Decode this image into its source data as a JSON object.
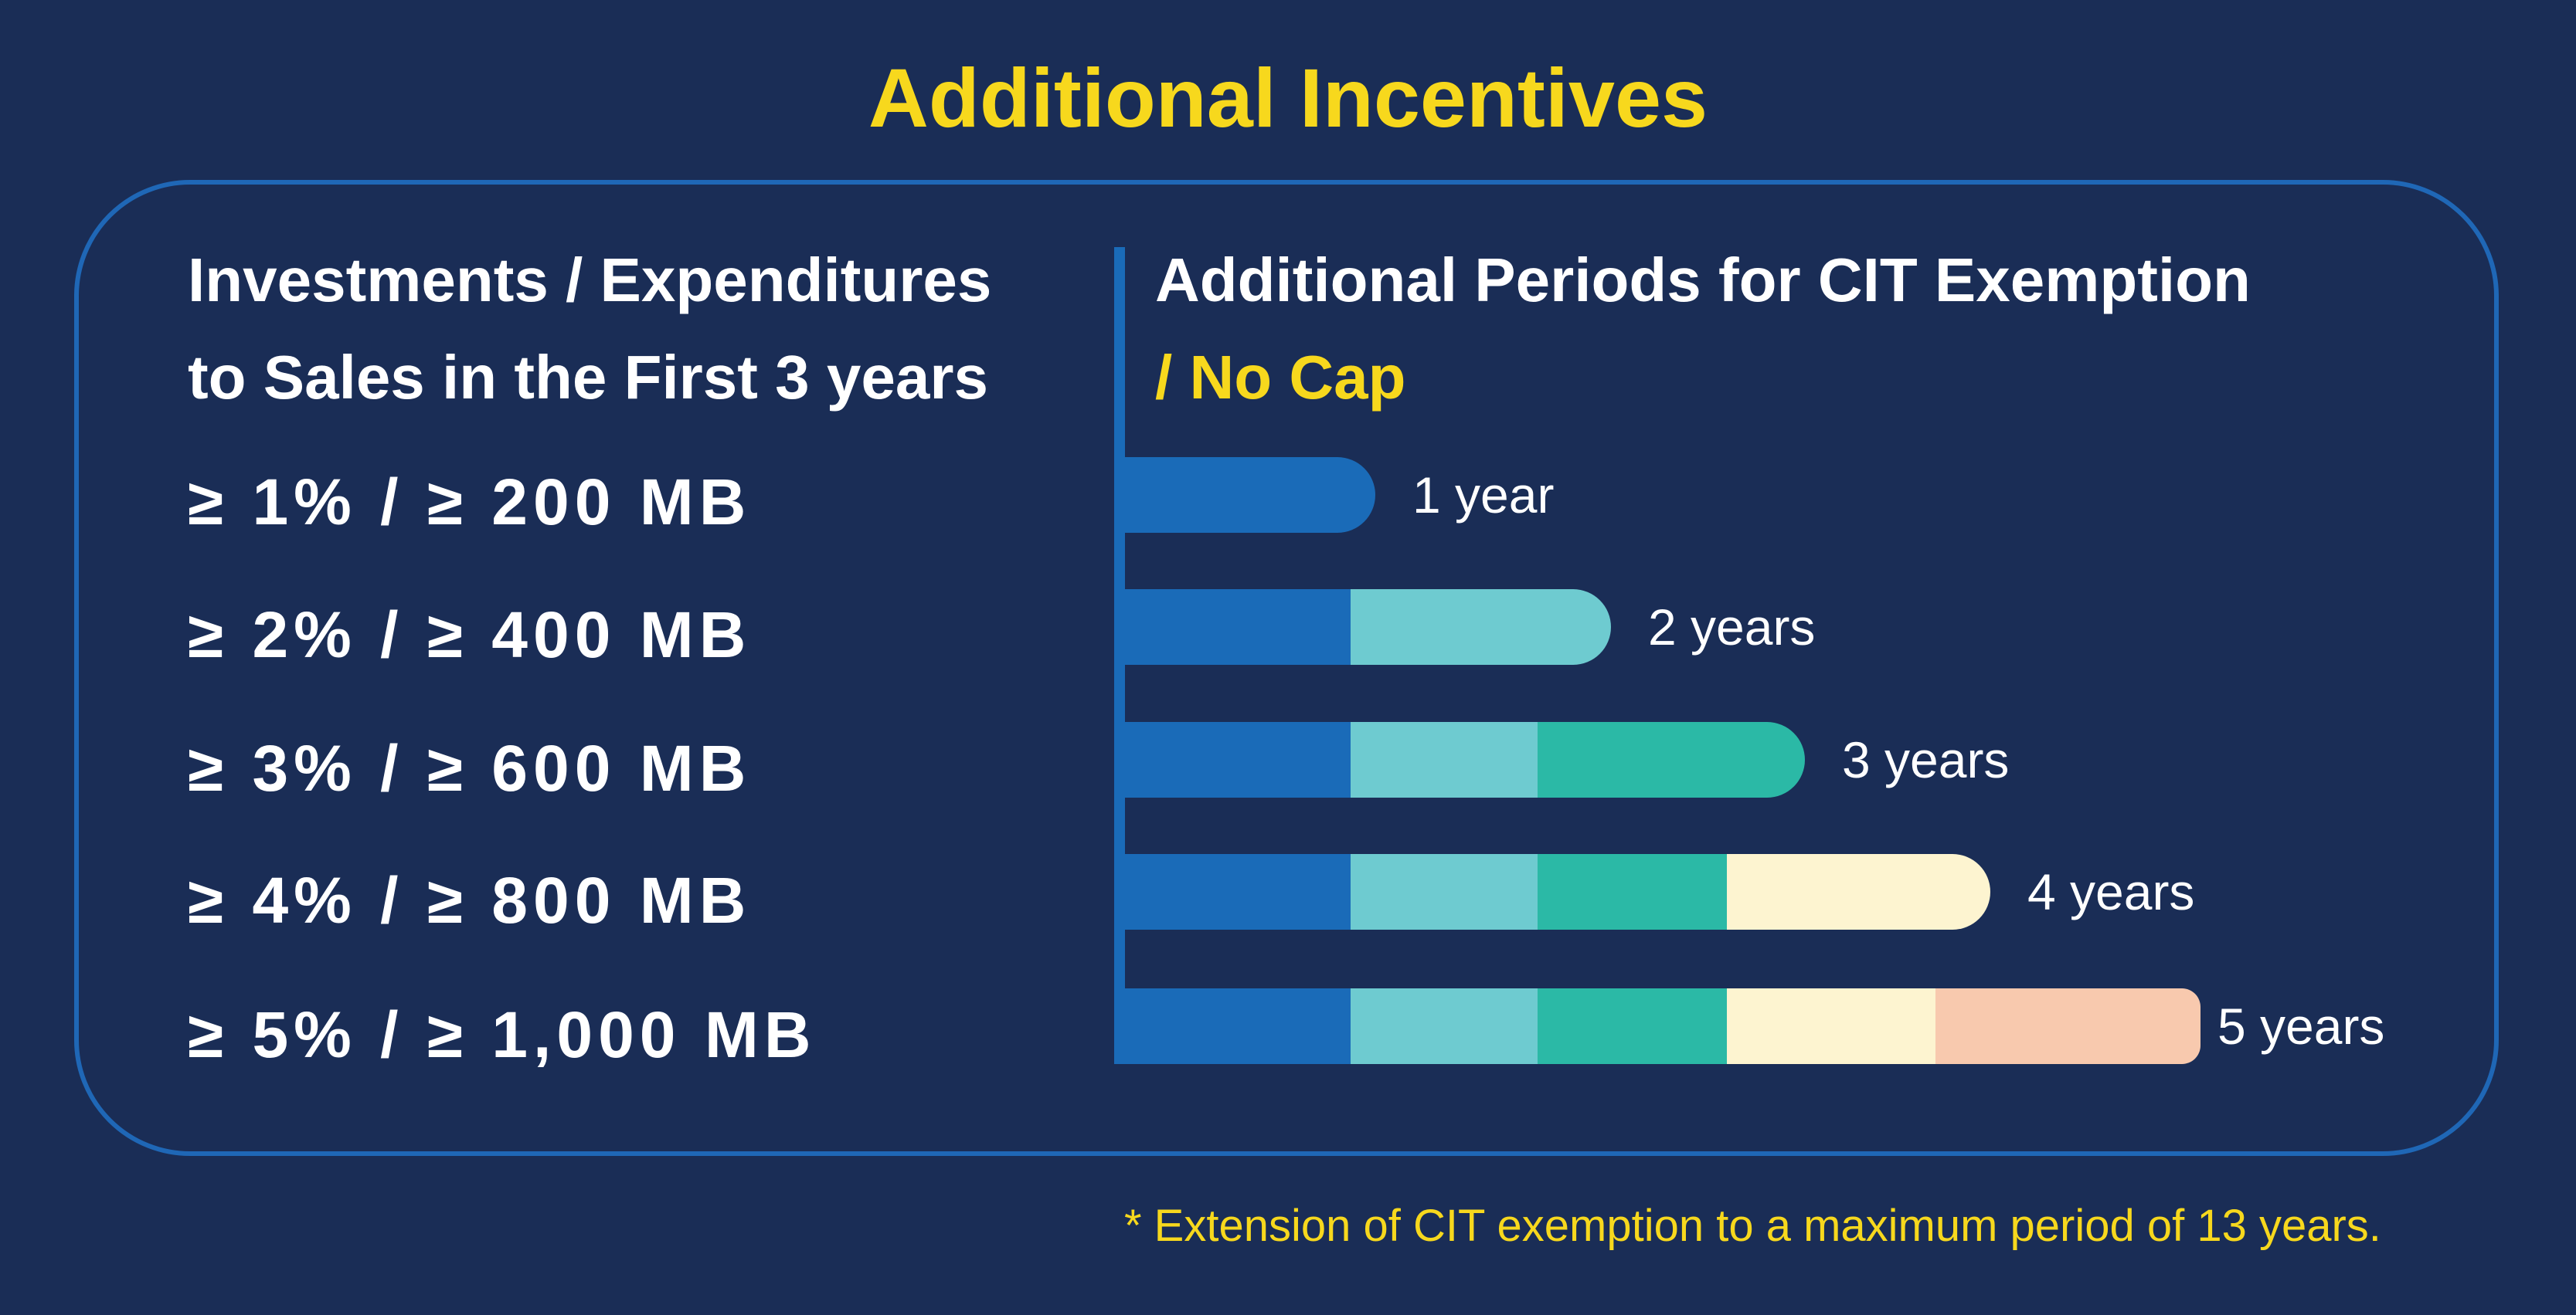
{
  "title": "Additional Incentives",
  "left_header": {
    "line1": "Investments / Expenditures",
    "line2": "to Sales in the First 3 years"
  },
  "right_header": {
    "line1": "Additional Periods for CIT Exemption",
    "line2": "/ No Cap"
  },
  "tiers": [
    "≥ 1% / ≥ 200 MB",
    "≥ 2% / ≥ 400 MB",
    "≥ 3% / ≥ 600 MB",
    "≥ 4% / ≥ 800 MB",
    "≥ 5% / ≥ 1,000 MB"
  ],
  "footnote": "* Extension of CIT exemption to a maximum period of 13 years.",
  "chart_data": {
    "type": "bar",
    "orientation": "horizontal",
    "stacked": true,
    "categories": [
      "≥ 1% / ≥ 200 MB",
      "≥ 2% / ≥ 400 MB",
      "≥ 3% / ≥ 600 MB",
      "≥ 4% / ≥ 800 MB",
      "≥ 5% / ≥ 1,000 MB"
    ],
    "values": [
      1,
      2,
      3,
      4,
      5
    ],
    "data_labels": [
      "1 year",
      "2 years",
      "3 years",
      "4 years",
      "5 years"
    ],
    "segment_colors": [
      "#1a6bb8",
      "#6ecbd0",
      "#2bb9a6",
      "#fdf4d0",
      "#f8c9ae"
    ],
    "axis_color": "#1a6bb8",
    "title": "Additional Periods for CIT Exemption / No Cap",
    "xlabel": "",
    "ylabel": "Investments / Expenditures to Sales in the First 3 years",
    "xlim": [
      0,
      5
    ]
  },
  "colors": {
    "background": "#1a2d56",
    "title": "#f7d81d",
    "frame": "#1f67b6",
    "text": "#ffffff",
    "accent": "#f7d81d"
  }
}
